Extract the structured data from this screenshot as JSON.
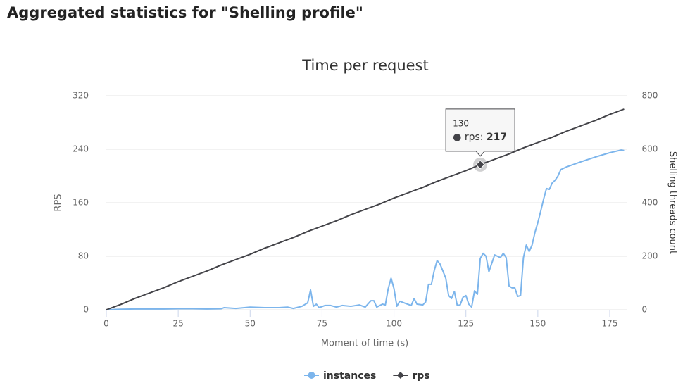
{
  "page_title": "Aggregated statistics for \"Shelling profile\"",
  "chart_data": {
    "type": "line",
    "title": "Time per request",
    "x_label": "Moment of time (s)",
    "y_label": "RPS",
    "y2_label": "Shelling threads count",
    "xlim": [
      0,
      181
    ],
    "xticks": [
      0,
      25,
      50,
      75,
      100,
      125,
      150,
      175
    ],
    "ylim": [
      0,
      320
    ],
    "yticks": [
      0,
      80,
      160,
      240,
      320
    ],
    "y2lim": [
      0,
      800
    ],
    "y2ticks": [
      0,
      200,
      400,
      600,
      800
    ],
    "grid": true,
    "legend": "bottom",
    "series": [
      {
        "name": "instances",
        "color": "#7cb5ec",
        "axis": "y2",
        "marker": "circle",
        "x": [
          0,
          5,
          10,
          15,
          20,
          25,
          30,
          35,
          40,
          41,
          45,
          48,
          50,
          55,
          60,
          63,
          65,
          68,
          70,
          71,
          72,
          73,
          74,
          76,
          78,
          80,
          82,
          85,
          88,
          90,
          92,
          93,
          94,
          96,
          97,
          98,
          99,
          100,
          101,
          102,
          104,
          106,
          107,
          108,
          110,
          111,
          112,
          113,
          114,
          115,
          116,
          117,
          118,
          119,
          120,
          121,
          122,
          123,
          124,
          125,
          126,
          127,
          128,
          129,
          130,
          131,
          132,
          133,
          134,
          135,
          136,
          137,
          138,
          139,
          140,
          141,
          142,
          143,
          144,
          145,
          146,
          147,
          148,
          149,
          150,
          151,
          152,
          153,
          154,
          155,
          156,
          157,
          158,
          160,
          165,
          170,
          175,
          179,
          180
        ],
        "values": [
          0,
          2,
          3,
          3,
          3,
          4,
          4,
          3,
          4,
          8,
          5,
          8,
          10,
          8,
          8,
          10,
          5,
          13,
          26,
          74,
          13,
          21,
          8,
          16,
          16,
          10,
          16,
          13,
          18,
          10,
          34,
          34,
          10,
          21,
          18,
          79,
          118,
          79,
          13,
          32,
          24,
          16,
          42,
          21,
          18,
          29,
          95,
          95,
          147,
          184,
          171,
          145,
          118,
          53,
          42,
          68,
          16,
          18,
          47,
          53,
          21,
          10,
          71,
          58,
          192,
          211,
          200,
          142,
          174,
          205,
          200,
          195,
          211,
          195,
          89,
          82,
          82,
          50,
          53,
          195,
          242,
          218,
          242,
          289,
          326,
          368,
          413,
          453,
          450,
          474,
          484,
          500,
          524,
          534,
          553,
          571,
          587,
          597,
          595
        ]
      },
      {
        "name": "rps",
        "color": "#434348",
        "axis": "y",
        "marker": "diamond",
        "x": [
          0,
          5,
          10,
          15,
          20,
          25,
          30,
          35,
          40,
          45,
          50,
          55,
          60,
          65,
          70,
          75,
          80,
          85,
          90,
          95,
          100,
          105,
          110,
          115,
          120,
          125,
          130,
          135,
          140,
          145,
          150,
          155,
          160,
          165,
          170,
          175,
          180
        ],
        "values": [
          0,
          8,
          17,
          25,
          33,
          42,
          50,
          58,
          67,
          75,
          83,
          92,
          100,
          108,
          117,
          125,
          133,
          142,
          150,
          158,
          167,
          175,
          183,
          192,
          200,
          208,
          217,
          225,
          233,
          242,
          250,
          258,
          267,
          275,
          283,
          292,
          300
        ]
      }
    ]
  }
}
